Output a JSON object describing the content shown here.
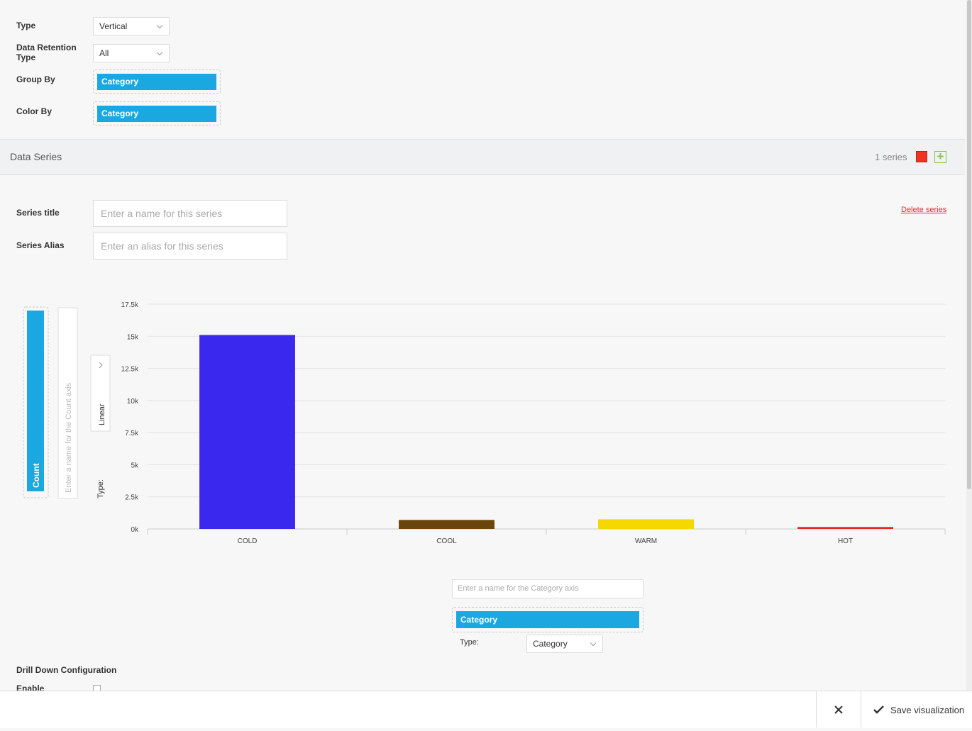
{
  "form": {
    "type_label": "Type",
    "type_value": "Vertical",
    "retention_label": "Data Retention Type",
    "retention_value": "All",
    "group_by_label": "Group By",
    "group_by_chip": "Category",
    "color_by_label": "Color By",
    "color_by_chip": "Category"
  },
  "data_series": {
    "title": "Data Series",
    "count": "1 series",
    "series_title_label": "Series title",
    "series_title_placeholder": "Enter a name for this series",
    "series_alias_label": "Series Alias",
    "series_alias_placeholder": "Enter an alias for this series",
    "delete": "Delete series"
  },
  "axes": {
    "y_chip": "Count",
    "y_placeholder": "Enter a name for the Count axis",
    "y_type_label": "Type:",
    "y_type_value": "Linear",
    "x_placeholder": "Enter a name for the Category axis",
    "x_chip": "Category",
    "x_type_label": "Type:",
    "x_type_value": "Category"
  },
  "drill": {
    "title": "Drill Down Configuration",
    "enable": "Enable"
  },
  "footer": {
    "save": "Save visualization"
  },
  "chart_data": {
    "type": "bar",
    "categories": [
      "COLD",
      "COOL",
      "WARM",
      "HOT"
    ],
    "values": [
      15100,
      700,
      750,
      150
    ],
    "colors": [
      "#3a28ef",
      "#6a460c",
      "#f4d800",
      "#ee2424"
    ],
    "ylim": [
      0,
      17500
    ],
    "yticks": [
      {
        "value": 0,
        "label": "0k"
      },
      {
        "value": 2500,
        "label": "2.5k"
      },
      {
        "value": 5000,
        "label": "5k"
      },
      {
        "value": 7500,
        "label": "7.5k"
      },
      {
        "value": 10000,
        "label": "10k"
      },
      {
        "value": 12500,
        "label": "12.5k"
      },
      {
        "value": 15000,
        "label": "15k"
      },
      {
        "value": 17500,
        "label": "17.5k"
      }
    ],
    "grid": true
  }
}
